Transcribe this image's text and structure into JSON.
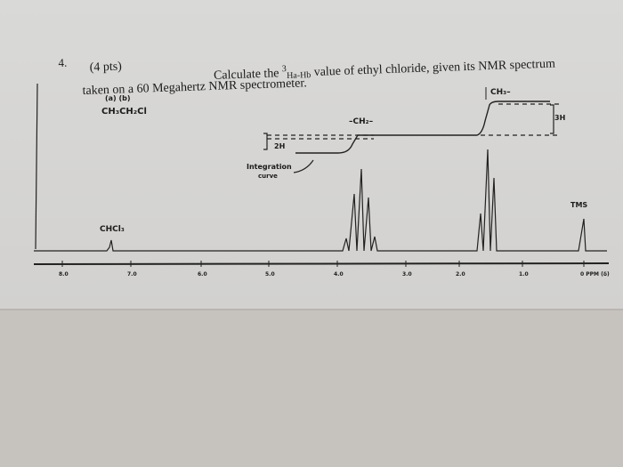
{
  "question": {
    "number": "4.",
    "points": "(4 pts)",
    "line1_start": "Calculate the ",
    "superscript": "3",
    "subscript": "Ha-Hb",
    "line1_end": " value of ethyl chloride, given its NMR spectrum",
    "line2": "taken on a 60 Megahertz NMR spectrometer."
  },
  "spectrum": {
    "proton_labels": "(a)  (b)",
    "formula": "CH₃CH₂Cl",
    "ch2_label": "–CH₂–",
    "ch3_label": "CH₃–",
    "integral_2h": "2H",
    "integral_3h": "3H",
    "integration_label_1": "Integration",
    "integration_label_2": "curve",
    "chcl3_label": "CHCl₃",
    "tms_label": "TMS",
    "axis_labels": [
      "8.0",
      "7.0",
      "6.0",
      "5.0",
      "4.0",
      "3.0",
      "2.0",
      "1.0",
      "0 PPM (δ)"
    ]
  }
}
